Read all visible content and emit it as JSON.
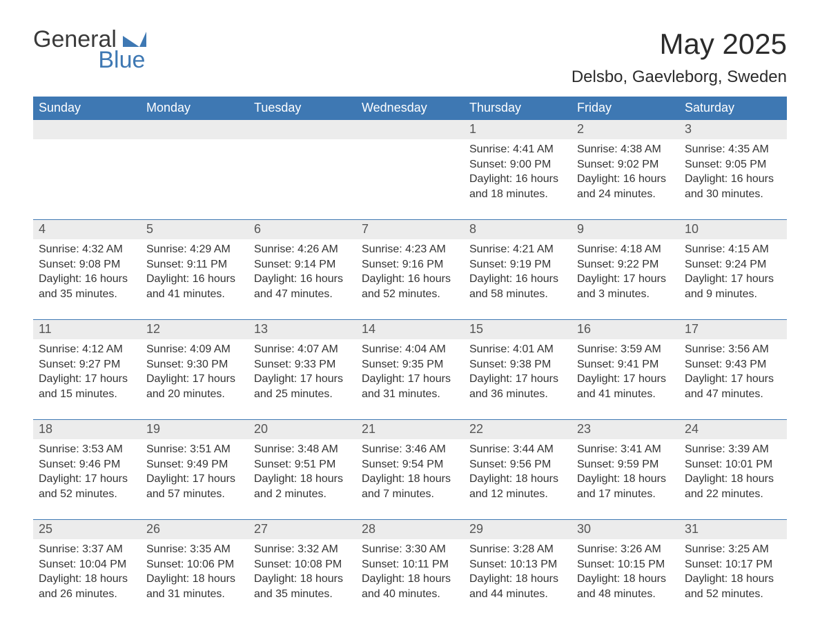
{
  "logo": {
    "word1": "General",
    "word2": "Blue"
  },
  "title": "May 2025",
  "location": "Delsbo, Gaevleborg, Sweden",
  "colors": {
    "header_bg": "#3e78b3",
    "header_text": "#ffffff",
    "daynum_bg": "#ececec",
    "text": "#333333",
    "rule": "#3e78b3",
    "logo_blue": "#3e78b3",
    "logo_dark": "#3a3a3a",
    "background": "#ffffff"
  },
  "weekdays": [
    "Sunday",
    "Monday",
    "Tuesday",
    "Wednesday",
    "Thursday",
    "Friday",
    "Saturday"
  ],
  "weeks": [
    [
      {
        "n": "",
        "sunrise": "",
        "sunset": "",
        "daylight": ""
      },
      {
        "n": "",
        "sunrise": "",
        "sunset": "",
        "daylight": ""
      },
      {
        "n": "",
        "sunrise": "",
        "sunset": "",
        "daylight": ""
      },
      {
        "n": "",
        "sunrise": "",
        "sunset": "",
        "daylight": ""
      },
      {
        "n": "1",
        "sunrise": "Sunrise: 4:41 AM",
        "sunset": "Sunset: 9:00 PM",
        "daylight": "Daylight: 16 hours and 18 minutes."
      },
      {
        "n": "2",
        "sunrise": "Sunrise: 4:38 AM",
        "sunset": "Sunset: 9:02 PM",
        "daylight": "Daylight: 16 hours and 24 minutes."
      },
      {
        "n": "3",
        "sunrise": "Sunrise: 4:35 AM",
        "sunset": "Sunset: 9:05 PM",
        "daylight": "Daylight: 16 hours and 30 minutes."
      }
    ],
    [
      {
        "n": "4",
        "sunrise": "Sunrise: 4:32 AM",
        "sunset": "Sunset: 9:08 PM",
        "daylight": "Daylight: 16 hours and 35 minutes."
      },
      {
        "n": "5",
        "sunrise": "Sunrise: 4:29 AM",
        "sunset": "Sunset: 9:11 PM",
        "daylight": "Daylight: 16 hours and 41 minutes."
      },
      {
        "n": "6",
        "sunrise": "Sunrise: 4:26 AM",
        "sunset": "Sunset: 9:14 PM",
        "daylight": "Daylight: 16 hours and 47 minutes."
      },
      {
        "n": "7",
        "sunrise": "Sunrise: 4:23 AM",
        "sunset": "Sunset: 9:16 PM",
        "daylight": "Daylight: 16 hours and 52 minutes."
      },
      {
        "n": "8",
        "sunrise": "Sunrise: 4:21 AM",
        "sunset": "Sunset: 9:19 PM",
        "daylight": "Daylight: 16 hours and 58 minutes."
      },
      {
        "n": "9",
        "sunrise": "Sunrise: 4:18 AM",
        "sunset": "Sunset: 9:22 PM",
        "daylight": "Daylight: 17 hours and 3 minutes."
      },
      {
        "n": "10",
        "sunrise": "Sunrise: 4:15 AM",
        "sunset": "Sunset: 9:24 PM",
        "daylight": "Daylight: 17 hours and 9 minutes."
      }
    ],
    [
      {
        "n": "11",
        "sunrise": "Sunrise: 4:12 AM",
        "sunset": "Sunset: 9:27 PM",
        "daylight": "Daylight: 17 hours and 15 minutes."
      },
      {
        "n": "12",
        "sunrise": "Sunrise: 4:09 AM",
        "sunset": "Sunset: 9:30 PM",
        "daylight": "Daylight: 17 hours and 20 minutes."
      },
      {
        "n": "13",
        "sunrise": "Sunrise: 4:07 AM",
        "sunset": "Sunset: 9:33 PM",
        "daylight": "Daylight: 17 hours and 25 minutes."
      },
      {
        "n": "14",
        "sunrise": "Sunrise: 4:04 AM",
        "sunset": "Sunset: 9:35 PM",
        "daylight": "Daylight: 17 hours and 31 minutes."
      },
      {
        "n": "15",
        "sunrise": "Sunrise: 4:01 AM",
        "sunset": "Sunset: 9:38 PM",
        "daylight": "Daylight: 17 hours and 36 minutes."
      },
      {
        "n": "16",
        "sunrise": "Sunrise: 3:59 AM",
        "sunset": "Sunset: 9:41 PM",
        "daylight": "Daylight: 17 hours and 41 minutes."
      },
      {
        "n": "17",
        "sunrise": "Sunrise: 3:56 AM",
        "sunset": "Sunset: 9:43 PM",
        "daylight": "Daylight: 17 hours and 47 minutes."
      }
    ],
    [
      {
        "n": "18",
        "sunrise": "Sunrise: 3:53 AM",
        "sunset": "Sunset: 9:46 PM",
        "daylight": "Daylight: 17 hours and 52 minutes."
      },
      {
        "n": "19",
        "sunrise": "Sunrise: 3:51 AM",
        "sunset": "Sunset: 9:49 PM",
        "daylight": "Daylight: 17 hours and 57 minutes."
      },
      {
        "n": "20",
        "sunrise": "Sunrise: 3:48 AM",
        "sunset": "Sunset: 9:51 PM",
        "daylight": "Daylight: 18 hours and 2 minutes."
      },
      {
        "n": "21",
        "sunrise": "Sunrise: 3:46 AM",
        "sunset": "Sunset: 9:54 PM",
        "daylight": "Daylight: 18 hours and 7 minutes."
      },
      {
        "n": "22",
        "sunrise": "Sunrise: 3:44 AM",
        "sunset": "Sunset: 9:56 PM",
        "daylight": "Daylight: 18 hours and 12 minutes."
      },
      {
        "n": "23",
        "sunrise": "Sunrise: 3:41 AM",
        "sunset": "Sunset: 9:59 PM",
        "daylight": "Daylight: 18 hours and 17 minutes."
      },
      {
        "n": "24",
        "sunrise": "Sunrise: 3:39 AM",
        "sunset": "Sunset: 10:01 PM",
        "daylight": "Daylight: 18 hours and 22 minutes."
      }
    ],
    [
      {
        "n": "25",
        "sunrise": "Sunrise: 3:37 AM",
        "sunset": "Sunset: 10:04 PM",
        "daylight": "Daylight: 18 hours and 26 minutes."
      },
      {
        "n": "26",
        "sunrise": "Sunrise: 3:35 AM",
        "sunset": "Sunset: 10:06 PM",
        "daylight": "Daylight: 18 hours and 31 minutes."
      },
      {
        "n": "27",
        "sunrise": "Sunrise: 3:32 AM",
        "sunset": "Sunset: 10:08 PM",
        "daylight": "Daylight: 18 hours and 35 minutes."
      },
      {
        "n": "28",
        "sunrise": "Sunrise: 3:30 AM",
        "sunset": "Sunset: 10:11 PM",
        "daylight": "Daylight: 18 hours and 40 minutes."
      },
      {
        "n": "29",
        "sunrise": "Sunrise: 3:28 AM",
        "sunset": "Sunset: 10:13 PM",
        "daylight": "Daylight: 18 hours and 44 minutes."
      },
      {
        "n": "30",
        "sunrise": "Sunrise: 3:26 AM",
        "sunset": "Sunset: 10:15 PM",
        "daylight": "Daylight: 18 hours and 48 minutes."
      },
      {
        "n": "31",
        "sunrise": "Sunrise: 3:25 AM",
        "sunset": "Sunset: 10:17 PM",
        "daylight": "Daylight: 18 hours and 52 minutes."
      }
    ]
  ]
}
